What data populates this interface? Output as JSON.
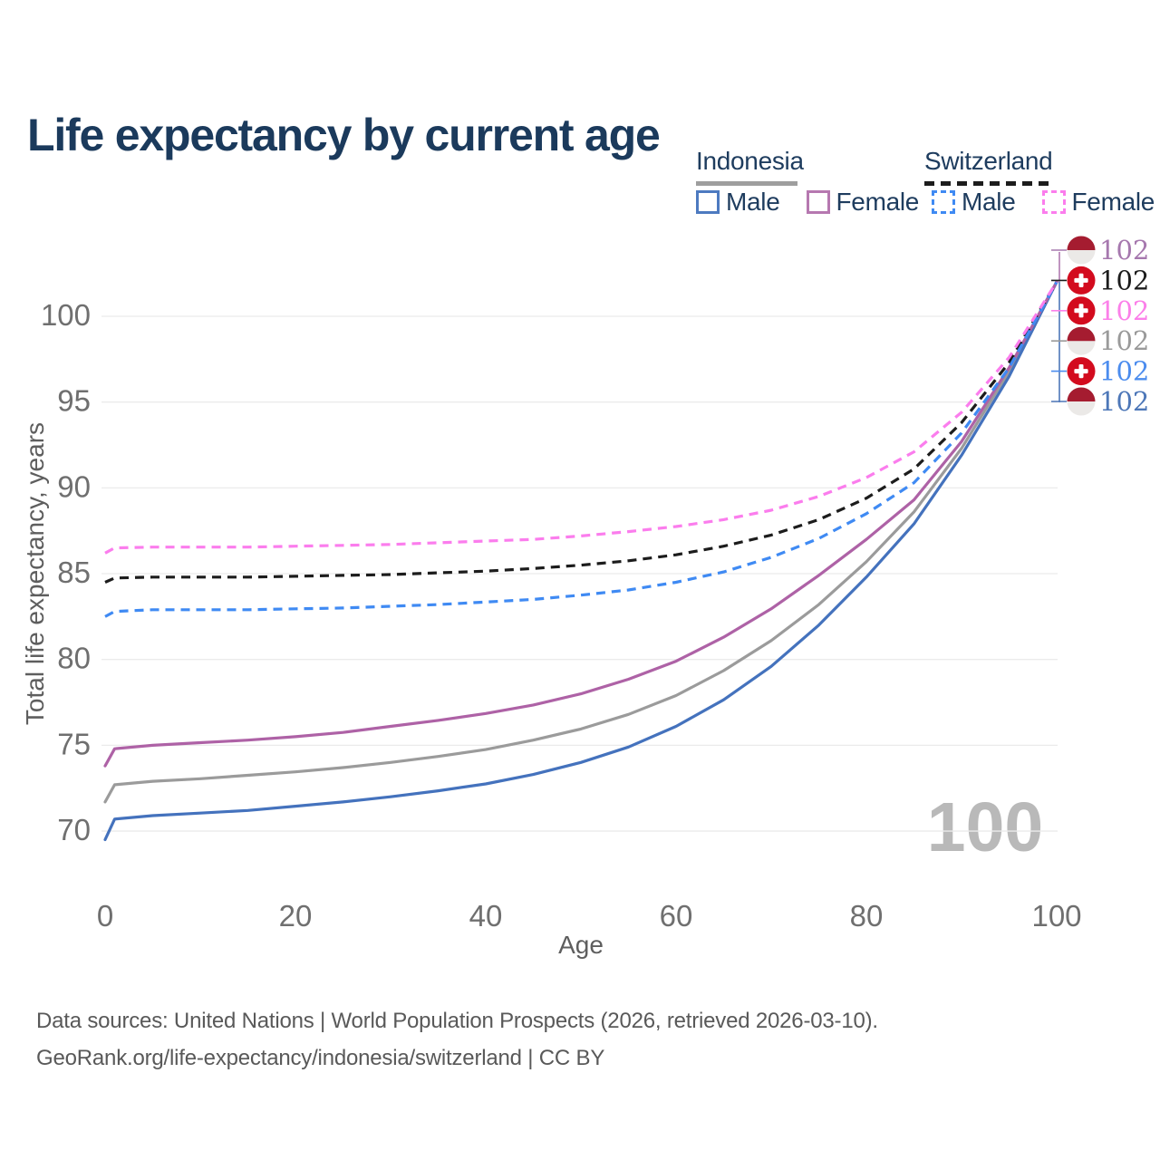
{
  "page": {
    "title": "Life expectancy by current age"
  },
  "legend": {
    "groups": [
      {
        "title": "Indonesia",
        "line_style": "solid",
        "underline_color": "#9e9e9e",
        "items": [
          {
            "label": "Male",
            "color": "#4d7ac0",
            "dashed": false
          },
          {
            "label": "Female",
            "color": "#b678b0",
            "dashed": false
          }
        ]
      },
      {
        "title": "Switzerland",
        "line_style": "dashed",
        "underline_color": "#1c1c1c",
        "items": [
          {
            "label": "Male",
            "color": "#3f8af3",
            "dashed": true
          },
          {
            "label": "Female",
            "color": "#fb7ded",
            "dashed": true
          }
        ]
      }
    ]
  },
  "chart_data": {
    "type": "line",
    "title": "Life expectancy by current age",
    "xlabel": "Age",
    "ylabel": "Total life expectancy, years",
    "xlim": [
      0,
      100
    ],
    "ylim": [
      69,
      103
    ],
    "x_ticks": [
      0,
      20,
      40,
      60,
      80,
      100
    ],
    "y_ticks": [
      70,
      75,
      80,
      85,
      90,
      95,
      100
    ],
    "grid": "horizontal-only",
    "gridline_color": "#ebebeb",
    "tick_label_color": "#6f6f6f",
    "axis_title_color": "#5e5e5e",
    "watermark": "100",
    "watermark_color": "#b9b9b9",
    "series": [
      {
        "id": "indonesia-total",
        "name": "Indonesia",
        "country": "Indonesia",
        "sex": "Total",
        "color": "#9b9b9b",
        "dashed": false,
        "points": [
          [
            0,
            71.7
          ],
          [
            1,
            72.7
          ],
          [
            5,
            72.9
          ],
          [
            10,
            73.05
          ],
          [
            15,
            73.25
          ],
          [
            20,
            73.45
          ],
          [
            25,
            73.7
          ],
          [
            30,
            74.0
          ],
          [
            35,
            74.35
          ],
          [
            40,
            74.75
          ],
          [
            45,
            75.3
          ],
          [
            50,
            75.95
          ],
          [
            55,
            76.8
          ],
          [
            60,
            77.9
          ],
          [
            65,
            79.35
          ],
          [
            70,
            81.1
          ],
          [
            75,
            83.2
          ],
          [
            80,
            85.7
          ],
          [
            85,
            88.6
          ],
          [
            90,
            92.3
          ],
          [
            95,
            96.8
          ],
          [
            100,
            102
          ]
        ]
      },
      {
        "id": "indonesia-male",
        "name": "Indonesia Male",
        "country": "Indonesia",
        "sex": "Male",
        "color": "#4472bd",
        "dashed": false,
        "points": [
          [
            0,
            69.5
          ],
          [
            1,
            70.7
          ],
          [
            5,
            70.9
          ],
          [
            10,
            71.05
          ],
          [
            15,
            71.2
          ],
          [
            20,
            71.45
          ],
          [
            25,
            71.7
          ],
          [
            30,
            72.0
          ],
          [
            35,
            72.35
          ],
          [
            40,
            72.75
          ],
          [
            45,
            73.3
          ],
          [
            50,
            74.0
          ],
          [
            55,
            74.9
          ],
          [
            60,
            76.1
          ],
          [
            65,
            77.65
          ],
          [
            70,
            79.6
          ],
          [
            75,
            82.0
          ],
          [
            80,
            84.8
          ],
          [
            85,
            87.9
          ],
          [
            90,
            91.9
          ],
          [
            95,
            96.5
          ],
          [
            100,
            102
          ]
        ]
      },
      {
        "id": "indonesia-female",
        "name": "Indonesia Female",
        "country": "Indonesia",
        "sex": "Female",
        "color": "#ae62a6",
        "dashed": false,
        "points": [
          [
            0,
            73.8
          ],
          [
            1,
            74.8
          ],
          [
            5,
            75.0
          ],
          [
            10,
            75.15
          ],
          [
            15,
            75.3
          ],
          [
            20,
            75.5
          ],
          [
            25,
            75.75
          ],
          [
            30,
            76.1
          ],
          [
            35,
            76.45
          ],
          [
            40,
            76.85
          ],
          [
            45,
            77.35
          ],
          [
            50,
            78.0
          ],
          [
            55,
            78.85
          ],
          [
            60,
            79.9
          ],
          [
            65,
            81.3
          ],
          [
            70,
            82.95
          ],
          [
            75,
            84.9
          ],
          [
            80,
            87.0
          ],
          [
            85,
            89.3
          ],
          [
            90,
            92.7
          ],
          [
            95,
            97.0
          ],
          [
            100,
            102
          ]
        ]
      },
      {
        "id": "switzerland-total",
        "name": "Switzerland",
        "country": "Switzerland",
        "sex": "Total",
        "color": "#1c1c1c",
        "dashed": true,
        "points": [
          [
            0,
            84.5
          ],
          [
            1,
            84.75
          ],
          [
            5,
            84.8
          ],
          [
            10,
            84.8
          ],
          [
            15,
            84.8
          ],
          [
            20,
            84.85
          ],
          [
            25,
            84.9
          ],
          [
            30,
            84.95
          ],
          [
            35,
            85.05
          ],
          [
            40,
            85.15
          ],
          [
            45,
            85.3
          ],
          [
            50,
            85.5
          ],
          [
            55,
            85.75
          ],
          [
            60,
            86.1
          ],
          [
            65,
            86.6
          ],
          [
            70,
            87.25
          ],
          [
            75,
            88.15
          ],
          [
            80,
            89.4
          ],
          [
            85,
            91.1
          ],
          [
            90,
            93.8
          ],
          [
            95,
            97.3
          ],
          [
            100,
            102
          ]
        ]
      },
      {
        "id": "switzerland-male",
        "name": "Switzerland Male",
        "country": "Switzerland",
        "sex": "Male",
        "color": "#3f8af3",
        "dashed": true,
        "points": [
          [
            0,
            82.5
          ],
          [
            1,
            82.8
          ],
          [
            5,
            82.9
          ],
          [
            10,
            82.9
          ],
          [
            15,
            82.9
          ],
          [
            20,
            82.95
          ],
          [
            25,
            83.0
          ],
          [
            30,
            83.1
          ],
          [
            35,
            83.2
          ],
          [
            40,
            83.35
          ],
          [
            45,
            83.5
          ],
          [
            50,
            83.75
          ],
          [
            55,
            84.05
          ],
          [
            60,
            84.5
          ],
          [
            65,
            85.1
          ],
          [
            70,
            85.95
          ],
          [
            75,
            87.05
          ],
          [
            80,
            88.5
          ],
          [
            85,
            90.3
          ],
          [
            90,
            93.2
          ],
          [
            95,
            97.0
          ],
          [
            100,
            102
          ]
        ]
      },
      {
        "id": "switzerland-female",
        "name": "Switzerland Female",
        "country": "Switzerland",
        "sex": "Female",
        "color": "#fb7ded",
        "dashed": true,
        "points": [
          [
            0,
            86.2
          ],
          [
            1,
            86.5
          ],
          [
            5,
            86.55
          ],
          [
            10,
            86.55
          ],
          [
            15,
            86.55
          ],
          [
            20,
            86.6
          ],
          [
            25,
            86.65
          ],
          [
            30,
            86.7
          ],
          [
            35,
            86.8
          ],
          [
            40,
            86.9
          ],
          [
            45,
            87.0
          ],
          [
            50,
            87.2
          ],
          [
            55,
            87.45
          ],
          [
            60,
            87.75
          ],
          [
            65,
            88.15
          ],
          [
            70,
            88.7
          ],
          [
            75,
            89.5
          ],
          [
            80,
            90.6
          ],
          [
            85,
            92.1
          ],
          [
            90,
            94.4
          ],
          [
            95,
            97.6
          ],
          [
            100,
            102
          ]
        ]
      }
    ],
    "end_labels": [
      {
        "value": "102",
        "flag": "indonesia",
        "series": "Indonesia Female",
        "color": "#a678ae"
      },
      {
        "value": "102",
        "flag": "switzerland",
        "series": "Switzerland",
        "color": "#1c1c1c"
      },
      {
        "value": "102",
        "flag": "switzerland",
        "series": "Switzerland Female",
        "color": "#fb80e9"
      },
      {
        "value": "102",
        "flag": "indonesia",
        "series": "Indonesia",
        "color": "#9a9a9a"
      },
      {
        "value": "102",
        "flag": "switzerland",
        "series": "Switzerland Male",
        "color": "#4b8cee"
      },
      {
        "value": "102",
        "flag": "indonesia",
        "series": "Indonesia Male",
        "color": "#4d77b8"
      }
    ],
    "flag_colors": {
      "indonesia_red": "#a51c30",
      "indonesia_white": "#ebe9e7",
      "switzerland_red": "#d30b1e",
      "switzerland_cross": "#ffffff"
    },
    "leader_colors": {
      "up": "#b07ab0",
      "down": "#4d77b8"
    }
  },
  "footer": {
    "line1": "Data sources: United Nations | World Population Prospects (2026, retrieved 2026-03-10).",
    "line2": "GeoRank.org/life-expectancy/indonesia/switzerland | CC BY"
  }
}
